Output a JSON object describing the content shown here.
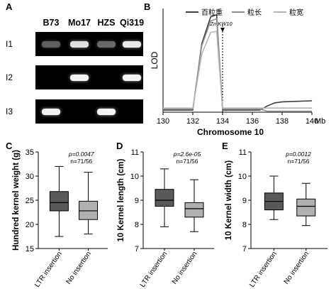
{
  "panel_labels": {
    "a": "A",
    "b": "B",
    "c": "C",
    "d": "D",
    "e": "E"
  },
  "gel": {
    "lanes": [
      "B73",
      "Mo17",
      "HZS",
      "Qi319"
    ],
    "rows": [
      {
        "label": "I1",
        "bands": [
          0.25,
          0.85,
          0.3,
          0.9
        ]
      },
      {
        "label": "I2",
        "bands": [
          0,
          0.95,
          0,
          0.95
        ]
      },
      {
        "label": "I3",
        "bands": [
          0.95,
          0,
          0.95,
          0
        ]
      }
    ]
  },
  "legend": [
    "百粒重",
    "粒长",
    "粒宽"
  ],
  "colors": {
    "hkw": "#404040",
    "kl": "#909090",
    "kw": "#b5b5b5",
    "box_dark": "#595959",
    "box_light": "#b0b0b0"
  },
  "chart_data": [
    {
      "type": "line",
      "xlabel": "Chromosome 10",
      "ylabel": "LOD",
      "x_unit": "Mb",
      "xlim": [
        130,
        140
      ],
      "x_ticks": [
        "130",
        "132",
        "134",
        "136",
        "138",
        "140"
      ],
      "annotation": "ZmKW10",
      "marker_x": 134,
      "series": [
        {
          "name": "百粒重",
          "points": [
            [
              130,
              0.1
            ],
            [
              132,
              0.1
            ],
            [
              132.6,
              3.3
            ],
            [
              133.2,
              4.6
            ],
            [
              133.6,
              4.7
            ],
            [
              134,
              0.1
            ],
            [
              136.5,
              0.1
            ],
            [
              137,
              0.3
            ],
            [
              137.5,
              0.45
            ],
            [
              138,
              0.5
            ],
            [
              140,
              0.55
            ]
          ]
        },
        {
          "name": "粒长",
          "points": [
            [
              130,
              0.15
            ],
            [
              132,
              0.15
            ],
            [
              132.6,
              3.2
            ],
            [
              133.2,
              4.4
            ],
            [
              133.6,
              4.5
            ],
            [
              134,
              0.15
            ],
            [
              136.5,
              0.15
            ],
            [
              137,
              0.05
            ],
            [
              140,
              0.05
            ]
          ]
        },
        {
          "name": "粒宽",
          "points": [
            [
              130,
              0.2
            ],
            [
              132,
              0.2
            ],
            [
              132.6,
              2.8
            ],
            [
              133.2,
              3.85
            ],
            [
              133.6,
              3.9
            ],
            [
              134,
              0.2
            ],
            [
              140,
              0.2
            ]
          ]
        }
      ]
    },
    {
      "type": "boxplot",
      "ylabel": "Hundred kernel weight (g)",
      "ylim": [
        15,
        35
      ],
      "y_ticks": [
        "15",
        "20",
        "25",
        "30",
        "35"
      ],
      "categories": [
        "LTR insertion",
        "No insertion"
      ],
      "p_value": "p=0.0047",
      "n_text": "n=71/56",
      "boxes": [
        {
          "min": 17.5,
          "q1": 22.8,
          "median": 24.5,
          "q3": 26.8,
          "max": 32
        },
        {
          "min": 18,
          "q1": 21,
          "median": 22.8,
          "q3": 24.8,
          "max": 30.8
        }
      ]
    },
    {
      "type": "boxplot",
      "ylabel": "10 Kernel length (cm)",
      "ylim": [
        7,
        11
      ],
      "y_ticks": [
        "7",
        "8",
        "9",
        "10",
        "11"
      ],
      "categories": [
        "LTR insertion",
        "No insertion"
      ],
      "p_value": "p=2.6e-05",
      "n_text": "n=71/56",
      "boxes": [
        {
          "min": 7.9,
          "q1": 8.75,
          "median": 9.0,
          "q3": 9.45,
          "max": 10.3
        },
        {
          "min": 7.7,
          "q1": 8.3,
          "median": 8.65,
          "q3": 8.9,
          "max": 9.85
        }
      ]
    },
    {
      "type": "boxplot",
      "ylabel": "10 Kernel width (cm)",
      "ylim": [
        7,
        11
      ],
      "y_ticks": [
        "7",
        "8",
        "9",
        "10",
        "11"
      ],
      "categories": [
        "LTR insertion",
        "No insertion"
      ],
      "p_value": "p=0.0012",
      "n_text": "n=71/56",
      "boxes": [
        {
          "min": 8.2,
          "q1": 8.6,
          "median": 8.95,
          "q3": 9.3,
          "max": 10.0
        },
        {
          "min": 7.95,
          "q1": 8.35,
          "median": 8.75,
          "q3": 9.05,
          "max": 9.7
        }
      ]
    }
  ]
}
